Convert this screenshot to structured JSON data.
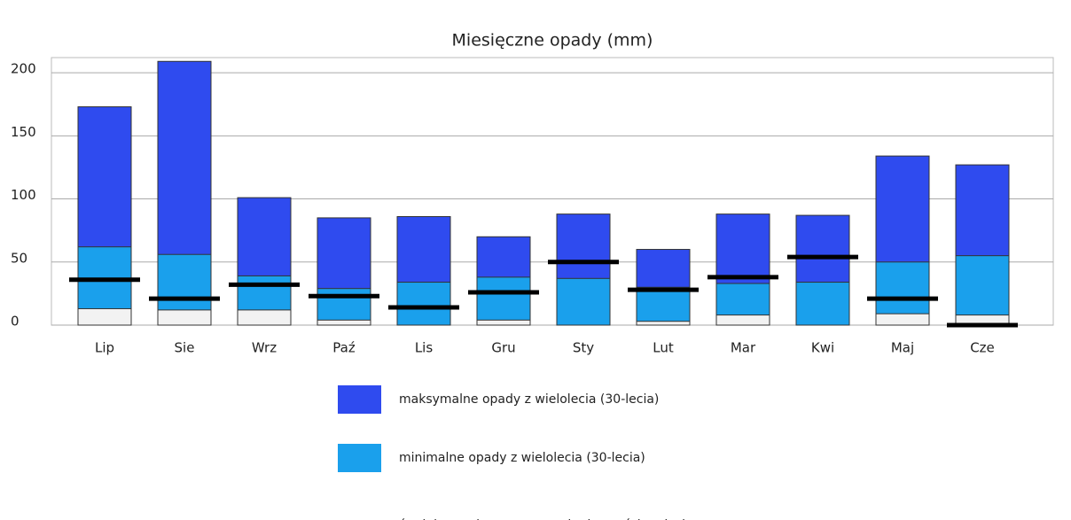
{
  "chart_data": {
    "type": "bar",
    "title": "Miesięczne opady (mm)",
    "categories": [
      "Lip",
      "Sie",
      "Wrz",
      "Paź",
      "Lis",
      "Gru",
      "Sty",
      "Lut",
      "Mar",
      "Kwi",
      "Maj",
      "Cze"
    ],
    "series": [
      {
        "name": "maksymalne opady z wielolecia (30-lecia)",
        "color": "#2f4bef",
        "values": [
          173,
          209,
          101,
          85,
          86,
          70,
          88,
          60,
          88,
          87,
          134,
          127
        ]
      },
      {
        "name": "minimalne opady z wielolecia (30-lecia)",
        "color": "#1aa0ec",
        "values": [
          62,
          56,
          39,
          29,
          34,
          38,
          37,
          30,
          33,
          34,
          50,
          55
        ]
      },
      {
        "color": "#f2f2f2",
        "values": [
          13,
          12,
          12,
          4,
          0,
          4,
          0,
          3,
          8,
          0,
          9,
          8
        ]
      },
      {
        "name": "średnie opady przez ostatnie dwanaście miesięcy",
        "color": "#000000",
        "marker": "line",
        "values": [
          36,
          21,
          32,
          23,
          14,
          26,
          50,
          28,
          38,
          54,
          21,
          0
        ]
      }
    ],
    "ylim": [
      0,
      212
    ],
    "yticks": [
      0,
      50,
      100,
      150,
      200
    ],
    "grid": true
  }
}
